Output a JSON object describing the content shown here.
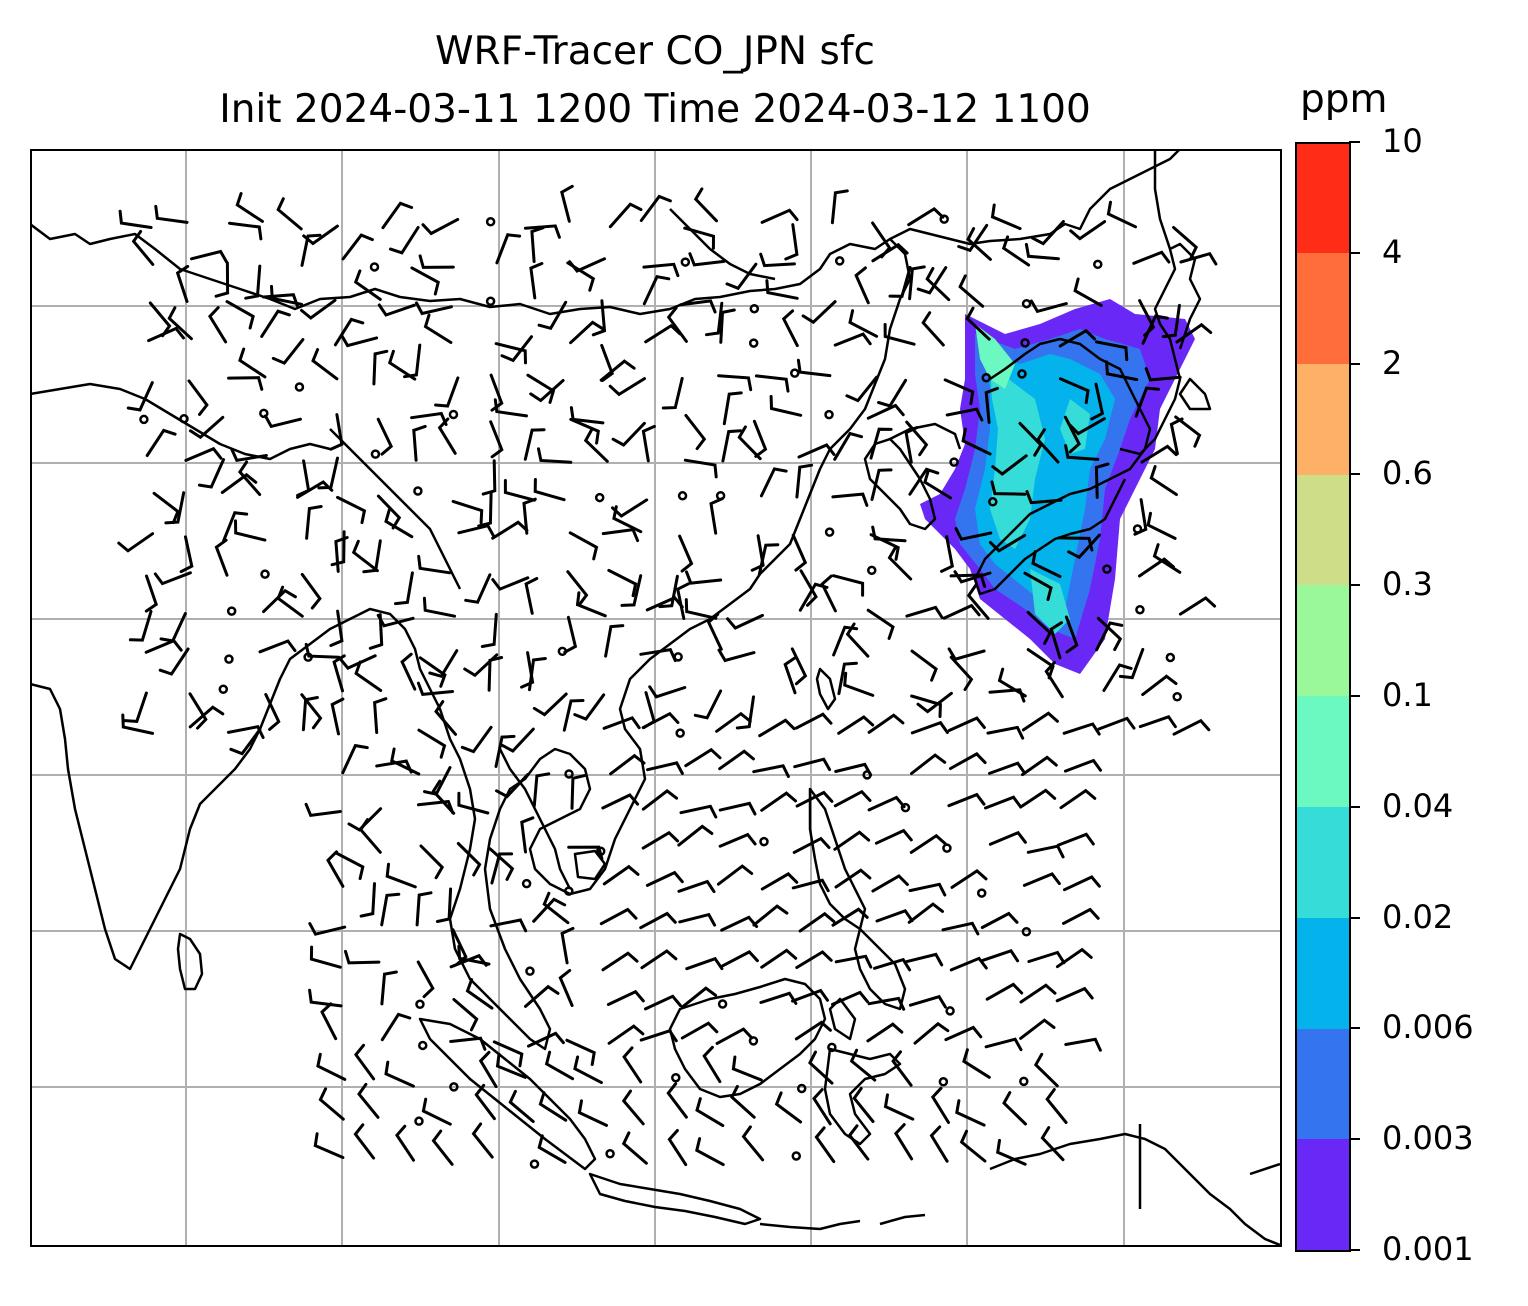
{
  "title": {
    "line1": "WRF-Tracer CO_JPN sfc",
    "line2": "Init 2024-03-11 1200 Time 2024-03-12 1100"
  },
  "colorbar": {
    "units": "ppm",
    "ticks": [
      "0.001",
      "0.003",
      "0.006",
      "0.02",
      "0.04",
      "0.1",
      "0.3",
      "0.6",
      "2",
      "4",
      "10"
    ],
    "colors": [
      "#6a28f6",
      "#3574ef",
      "#04b3ec",
      "#35dcd8",
      "#6cf8c1",
      "#9af89b",
      "#cede88",
      "#feb066",
      "#ff6d3a",
      "#ff2d17"
    ]
  },
  "map": {
    "projection_note": "",
    "grid": true,
    "coastline_color": "#000000",
    "gridline_color": "#b0b0b0",
    "wind_barbs": true,
    "tracer_colors_used": [
      "#6a28f6",
      "#3574ef",
      "#04b3ec",
      "#35dcd8",
      "#6cf8c1"
    ]
  }
}
